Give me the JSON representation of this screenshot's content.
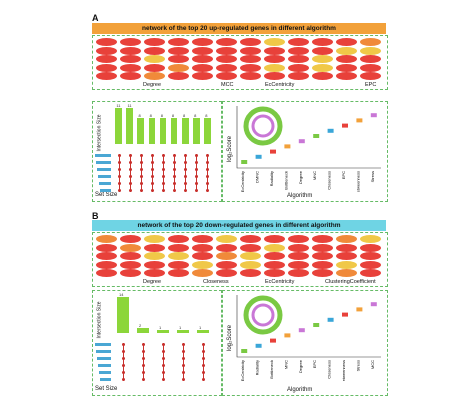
{
  "panel_a": {
    "letter": "A",
    "banner": "network of the top 20 up-regulated genes in different algorithm",
    "net_labels": [
      "Degree",
      "MCC",
      "EcCentricity",
      "EPC"
    ],
    "upset": {
      "ylabel": "Intersection Size",
      "xlabel": "Set Size"
    },
    "box": {
      "ylabel": "log₂Score",
      "xlabel": "Algorithm",
      "categories": [
        "EcCentricity",
        "DMNC",
        "Radiality",
        "Bottleneck",
        "Degree",
        "MNC",
        "Closeness",
        "EPC",
        "Betweenness",
        "Stress"
      ]
    }
  },
  "panel_b": {
    "letter": "B",
    "banner": "network of the top 20 down-regulated genes in different algorithm",
    "net_labels": [
      "Degree",
      "Closeness",
      "EcCentricity",
      "ClusteringCoefficient"
    ],
    "upset": {
      "ylabel": "Intersection Size",
      "xlabel": "Set Size"
    },
    "box": {
      "ylabel": "log₂Score",
      "xlabel": "Algorithm",
      "categories": [
        "EcCentricity",
        "Radiality",
        "Bottleneck",
        "MNC",
        "Degree",
        "EPC",
        "Closeness",
        "Betweenness",
        "Stress",
        "MCC"
      ]
    }
  },
  "chart_data": [
    {
      "type": "bar",
      "title": "",
      "xlabel": "Set Size",
      "ylabel": "Intersection Size",
      "categories": [
        "1",
        "2",
        "3",
        "4",
        "5",
        "6",
        "7",
        "8",
        "9"
      ],
      "values": [
        11,
        11,
        8,
        8,
        8,
        8,
        8,
        8,
        8
      ]
    },
    {
      "type": "bar",
      "title": "",
      "xlabel": "Set Size",
      "ylabel": "Intersection Size",
      "categories": [
        "1",
        "2",
        "3",
        "4",
        "5"
      ],
      "values": [
        14,
        2,
        1,
        1,
        1
      ]
    }
  ],
  "colors": {
    "orange_banner": "#f2a13a",
    "cyan_banner": "#6fd4e4",
    "node_red": "#e8413a",
    "bar_green": "#8cd63a",
    "set_blue": "#4aa7d4"
  }
}
